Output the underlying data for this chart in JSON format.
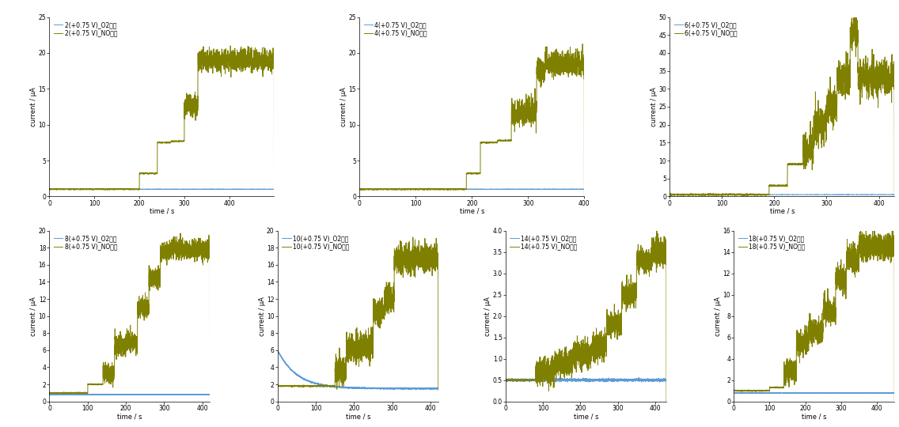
{
  "subplots": [
    {
      "electrode": "2",
      "ylim": [
        0,
        25
      ],
      "yticks": [
        0,
        5,
        10,
        15,
        20,
        25
      ],
      "xlim": [
        0,
        500
      ],
      "xticks": [
        0,
        100,
        200,
        300,
        400
      ],
      "o2_level": 1.0,
      "no_steps": [
        {
          "start": 0,
          "end": 200,
          "level": 1.0
        },
        {
          "start": 200,
          "end": 240,
          "level": 3.2
        },
        {
          "start": 240,
          "end": 270,
          "level": 7.5
        },
        {
          "start": 270,
          "end": 300,
          "level": 7.7
        },
        {
          "start": 300,
          "end": 330,
          "level": 12.5
        },
        {
          "start": 330,
          "end": 355,
          "level": 19.0
        },
        {
          "start": 355,
          "end": 500,
          "level": 19.0
        }
      ],
      "noise_scale": 0.8,
      "noise_start": 300
    },
    {
      "electrode": "4",
      "ylim": [
        0,
        25
      ],
      "yticks": [
        0,
        5,
        10,
        15,
        20,
        25
      ],
      "xlim": [
        0,
        400
      ],
      "xticks": [
        0,
        100,
        200,
        300,
        400
      ],
      "o2_level": 1.0,
      "no_steps": [
        {
          "start": 0,
          "end": 190,
          "level": 1.0
        },
        {
          "start": 190,
          "end": 215,
          "level": 3.2
        },
        {
          "start": 215,
          "end": 245,
          "level": 7.5
        },
        {
          "start": 245,
          "end": 270,
          "level": 7.8
        },
        {
          "start": 270,
          "end": 295,
          "level": 11.5
        },
        {
          "start": 295,
          "end": 315,
          "level": 12.0
        },
        {
          "start": 315,
          "end": 330,
          "level": 17.5
        },
        {
          "start": 330,
          "end": 400,
          "level": 18.5
        }
      ],
      "noise_scale": 0.9,
      "noise_start": 270
    },
    {
      "electrode": "6",
      "ylim": [
        0,
        50
      ],
      "yticks": [
        0,
        5,
        10,
        15,
        20,
        25,
        30,
        35,
        40,
        45,
        50
      ],
      "xlim": [
        0,
        430
      ],
      "xticks": [
        0,
        100,
        200,
        300,
        400
      ],
      "o2_level": 0.5,
      "no_steps": [
        {
          "start": 0,
          "end": 190,
          "level": 0.5
        },
        {
          "start": 190,
          "end": 225,
          "level": 3.0
        },
        {
          "start": 225,
          "end": 255,
          "level": 9.0
        },
        {
          "start": 255,
          "end": 275,
          "level": 13.0
        },
        {
          "start": 275,
          "end": 300,
          "level": 20.0
        },
        {
          "start": 300,
          "end": 320,
          "level": 25.0
        },
        {
          "start": 320,
          "end": 345,
          "level": 33.0
        },
        {
          "start": 345,
          "end": 360,
          "level": 46.0
        },
        {
          "start": 360,
          "end": 430,
          "level": 33.0
        }
      ],
      "noise_scale": 2.5,
      "noise_start": 255
    },
    {
      "electrode": "8",
      "ylim": [
        0,
        20
      ],
      "yticks": [
        0,
        2,
        4,
        6,
        8,
        10,
        12,
        14,
        16,
        18,
        20
      ],
      "xlim": [
        0,
        420
      ],
      "xticks": [
        0,
        100,
        200,
        300,
        400
      ],
      "o2_level": 0.8,
      "no_steps": [
        {
          "start": 0,
          "end": 100,
          "level": 1.0
        },
        {
          "start": 100,
          "end": 140,
          "level": 2.0
        },
        {
          "start": 140,
          "end": 170,
          "level": 3.3
        },
        {
          "start": 170,
          "end": 200,
          "level": 6.5
        },
        {
          "start": 200,
          "end": 230,
          "level": 7.0
        },
        {
          "start": 230,
          "end": 260,
          "level": 11.0
        },
        {
          "start": 260,
          "end": 290,
          "level": 14.5
        },
        {
          "start": 290,
          "end": 310,
          "level": 17.5
        },
        {
          "start": 310,
          "end": 420,
          "level": 17.8
        }
      ],
      "noise_scale": 0.6,
      "noise_start": 140
    },
    {
      "electrode": "10",
      "ylim": [
        0,
        20
      ],
      "yticks": [
        0,
        2,
        4,
        6,
        8,
        10,
        12,
        14,
        16,
        18,
        20
      ],
      "xlim": [
        0,
        420
      ],
      "xticks": [
        0,
        100,
        200,
        300,
        400
      ],
      "o2_decay": true,
      "o2_start": 6.0,
      "o2_end": 1.5,
      "o2_tau": 50,
      "no_steps": [
        {
          "start": 0,
          "end": 150,
          "level": 1.8
        },
        {
          "start": 150,
          "end": 180,
          "level": 3.5
        },
        {
          "start": 180,
          "end": 215,
          "level": 6.2
        },
        {
          "start": 215,
          "end": 250,
          "level": 6.5
        },
        {
          "start": 250,
          "end": 280,
          "level": 10.5
        },
        {
          "start": 280,
          "end": 305,
          "level": 12.0
        },
        {
          "start": 305,
          "end": 330,
          "level": 16.5
        },
        {
          "start": 330,
          "end": 420,
          "level": 16.8
        }
      ],
      "noise_scale": 0.8,
      "noise_start": 150
    },
    {
      "electrode": "14",
      "ylim": [
        0,
        4
      ],
      "yticks": [
        0,
        0.5,
        1.0,
        1.5,
        2.0,
        2.5,
        3.0,
        3.5,
        4.0
      ],
      "xlim": [
        0,
        430
      ],
      "xticks": [
        0,
        100,
        200,
        300,
        400
      ],
      "o2_level": 0.5,
      "no_steps": [
        {
          "start": 0,
          "end": 80,
          "level": 0.5
        },
        {
          "start": 80,
          "end": 130,
          "level": 0.7
        },
        {
          "start": 130,
          "end": 180,
          "level": 0.9
        },
        {
          "start": 180,
          "end": 230,
          "level": 1.1
        },
        {
          "start": 230,
          "end": 270,
          "level": 1.3
        },
        {
          "start": 270,
          "end": 310,
          "level": 1.8
        },
        {
          "start": 310,
          "end": 350,
          "level": 2.5
        },
        {
          "start": 350,
          "end": 390,
          "level": 3.3
        },
        {
          "start": 390,
          "end": 430,
          "level": 3.5
        }
      ],
      "noise_scale": 0.15,
      "noise_start": 80
    },
    {
      "electrode": "18",
      "ylim": [
        0,
        16
      ],
      "yticks": [
        0,
        2,
        4,
        6,
        8,
        10,
        12,
        14,
        16
      ],
      "xlim": [
        0,
        450
      ],
      "xticks": [
        0,
        100,
        200,
        300,
        400
      ],
      "o2_level": 0.8,
      "no_steps": [
        {
          "start": 0,
          "end": 100,
          "level": 1.0
        },
        {
          "start": 100,
          "end": 140,
          "level": 1.3
        },
        {
          "start": 140,
          "end": 175,
          "level": 2.8
        },
        {
          "start": 175,
          "end": 210,
          "level": 5.5
        },
        {
          "start": 210,
          "end": 250,
          "level": 6.5
        },
        {
          "start": 250,
          "end": 285,
          "level": 8.5
        },
        {
          "start": 285,
          "end": 315,
          "level": 11.5
        },
        {
          "start": 315,
          "end": 350,
          "level": 13.5
        },
        {
          "start": 350,
          "end": 450,
          "level": 14.5
        }
      ],
      "noise_scale": 0.6,
      "noise_start": 140
    }
  ],
  "blue_color": "#5B9BD5",
  "green_color": "#808000",
  "bg_color": "#FFFFFF",
  "legend_fontsize": 5.5,
  "tick_fontsize": 5.5,
  "label_fontsize": 6,
  "xlabel": "time / s",
  "ylabel": "current / μA"
}
